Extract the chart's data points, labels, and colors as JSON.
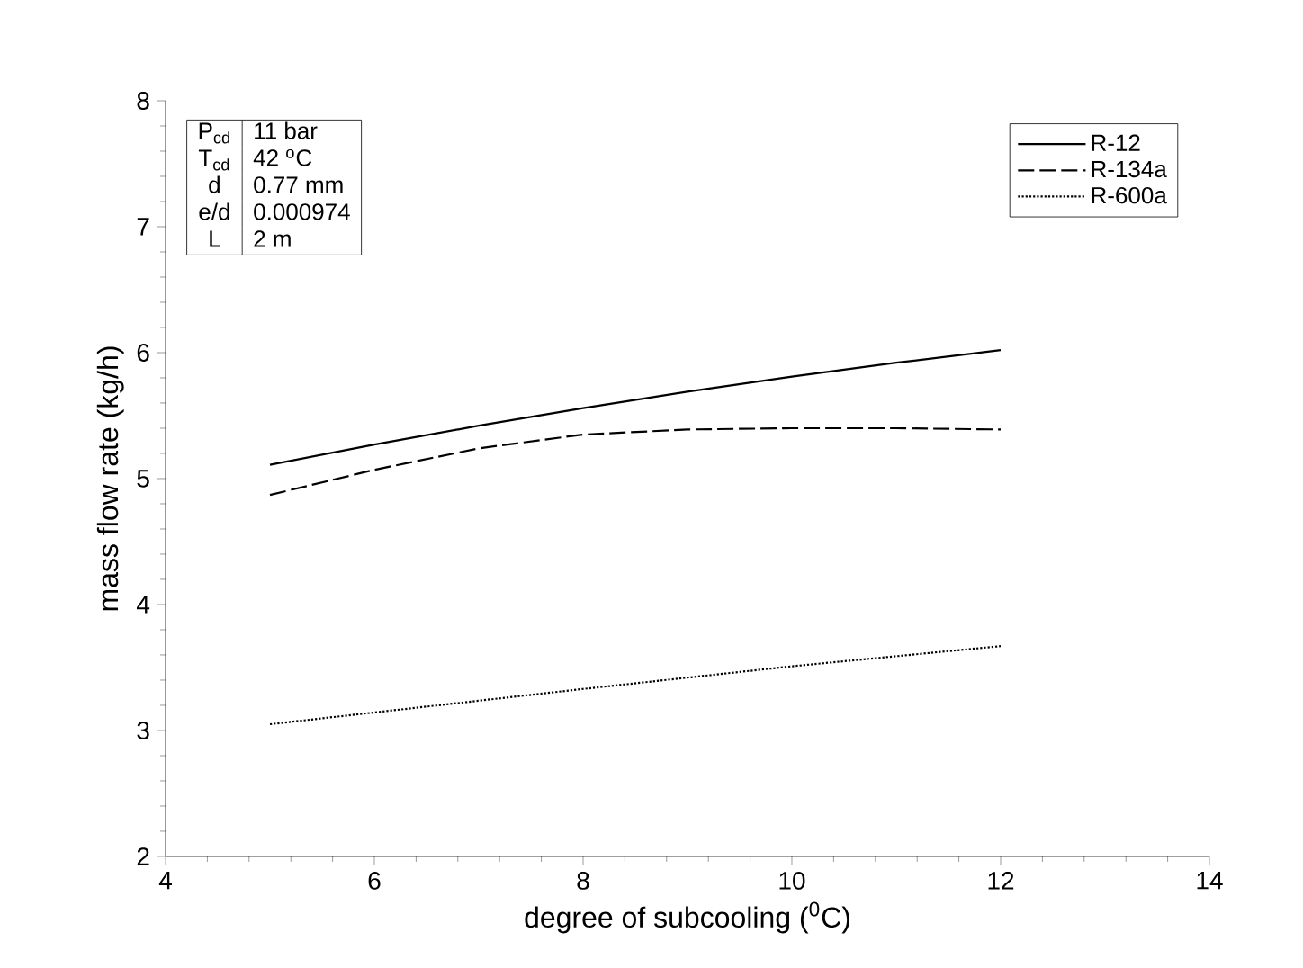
{
  "chart_data": {
    "type": "line",
    "xlabel": "degree of subcooling ($^{0}$C)",
    "ylabel": "mass flow rate (kg/h)",
    "xlim": [
      4,
      14
    ],
    "xticks": [
      4,
      6,
      8,
      10,
      12,
      14
    ],
    "ylim": [
      2,
      8
    ],
    "yticks": [
      2,
      3,
      4,
      5,
      6,
      7,
      8
    ],
    "grid": false,
    "legend": "top right",
    "series": [
      {
        "name": "R-12",
        "color": "#000000",
        "line_style": "solid",
        "x": [
          5,
          6,
          7,
          8,
          9,
          10,
          11,
          12
        ],
        "values": [
          5.11,
          5.27,
          5.42,
          5.56,
          5.69,
          5.81,
          5.92,
          6.02
        ]
      },
      {
        "name": "R-134a",
        "color": "#000000",
        "line_style": "dashed",
        "x": [
          5,
          6,
          7,
          8,
          9,
          10,
          11,
          12
        ],
        "values": [
          4.87,
          5.07,
          5.24,
          5.35,
          5.39,
          5.4,
          5.4,
          5.39
        ]
      },
      {
        "name": "R-600a",
        "color": "#000000",
        "line_style": "dotted",
        "x": [
          5,
          8,
          10,
          12
        ],
        "values": [
          3.05,
          3.33,
          3.51,
          3.67
        ]
      }
    ],
    "annotations": [
      "P$_{cd}$",
      "11 bar",
      "T$_{cd}$",
      "42 $^{o}$C",
      "d",
      "0.77 mm",
      "e/d",
      "0.000974",
      "L",
      "2 m"
    ]
  }
}
